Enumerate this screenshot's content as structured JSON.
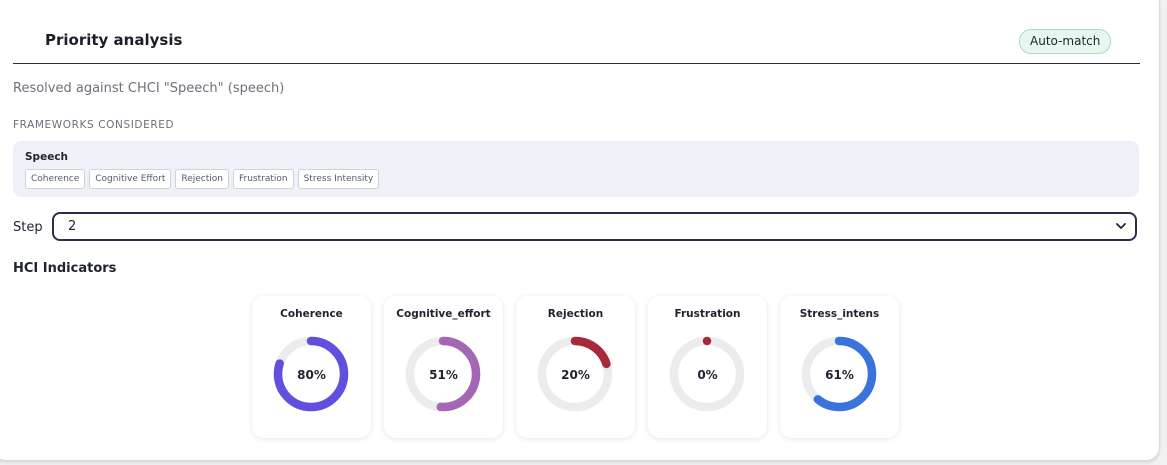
{
  "header": {
    "title": "Priority analysis",
    "badge": "Auto-match"
  },
  "resolved_text": "Resolved against CHCI \"Speech\" (speech)",
  "frameworks": {
    "heading": "FRAMEWORKS CONSIDERED",
    "name": "Speech",
    "chips": [
      "Coherence",
      "Cognitive Effort",
      "Rejection",
      "Frustration",
      "Stress Intensity"
    ]
  },
  "step": {
    "label": "Step",
    "value": "2"
  },
  "hci": {
    "heading": "HCI Indicators",
    "indicators": [
      {
        "name": "Coherence",
        "value": 80,
        "label": "80%",
        "color": "#6150e0"
      },
      {
        "name": "Cognitive_effort",
        "value": 51,
        "label": "51%",
        "color": "#a268b4"
      },
      {
        "name": "Rejection",
        "value": 20,
        "label": "20%",
        "color": "#a8293a"
      },
      {
        "name": "Frustration",
        "value": 0,
        "label": "0%",
        "color": "#a8293a"
      },
      {
        "name": "Stress_intens",
        "value": 61,
        "label": "61%",
        "color": "#3b73dd"
      }
    ]
  }
}
